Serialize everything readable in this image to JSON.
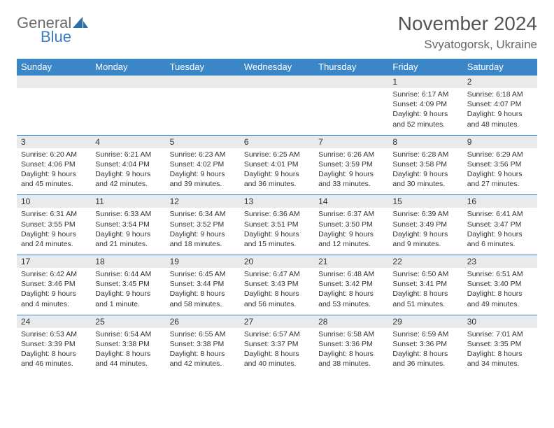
{
  "brand": {
    "general": "General",
    "blue": "Blue"
  },
  "heading": {
    "month": "November 2024",
    "location": "Svyatogorsk, Ukraine"
  },
  "colors": {
    "header_bg": "#3b86c6",
    "daynum_bg": "#e9eaec",
    "border": "#3b86c6",
    "text": "#333333",
    "heading": "#555555"
  },
  "days": [
    "Sunday",
    "Monday",
    "Tuesday",
    "Wednesday",
    "Thursday",
    "Friday",
    "Saturday"
  ],
  "weeks": [
    [
      null,
      null,
      null,
      null,
      null,
      {
        "n": "1",
        "sr": "6:17 AM",
        "ss": "4:09 PM",
        "dl": "9 hours and 52 minutes."
      },
      {
        "n": "2",
        "sr": "6:18 AM",
        "ss": "4:07 PM",
        "dl": "9 hours and 48 minutes."
      }
    ],
    [
      {
        "n": "3",
        "sr": "6:20 AM",
        "ss": "4:06 PM",
        "dl": "9 hours and 45 minutes."
      },
      {
        "n": "4",
        "sr": "6:21 AM",
        "ss": "4:04 PM",
        "dl": "9 hours and 42 minutes."
      },
      {
        "n": "5",
        "sr": "6:23 AM",
        "ss": "4:02 PM",
        "dl": "9 hours and 39 minutes."
      },
      {
        "n": "6",
        "sr": "6:25 AM",
        "ss": "4:01 PM",
        "dl": "9 hours and 36 minutes."
      },
      {
        "n": "7",
        "sr": "6:26 AM",
        "ss": "3:59 PM",
        "dl": "9 hours and 33 minutes."
      },
      {
        "n": "8",
        "sr": "6:28 AM",
        "ss": "3:58 PM",
        "dl": "9 hours and 30 minutes."
      },
      {
        "n": "9",
        "sr": "6:29 AM",
        "ss": "3:56 PM",
        "dl": "9 hours and 27 minutes."
      }
    ],
    [
      {
        "n": "10",
        "sr": "6:31 AM",
        "ss": "3:55 PM",
        "dl": "9 hours and 24 minutes."
      },
      {
        "n": "11",
        "sr": "6:33 AM",
        "ss": "3:54 PM",
        "dl": "9 hours and 21 minutes."
      },
      {
        "n": "12",
        "sr": "6:34 AM",
        "ss": "3:52 PM",
        "dl": "9 hours and 18 minutes."
      },
      {
        "n": "13",
        "sr": "6:36 AM",
        "ss": "3:51 PM",
        "dl": "9 hours and 15 minutes."
      },
      {
        "n": "14",
        "sr": "6:37 AM",
        "ss": "3:50 PM",
        "dl": "9 hours and 12 minutes."
      },
      {
        "n": "15",
        "sr": "6:39 AM",
        "ss": "3:49 PM",
        "dl": "9 hours and 9 minutes."
      },
      {
        "n": "16",
        "sr": "6:41 AM",
        "ss": "3:47 PM",
        "dl": "9 hours and 6 minutes."
      }
    ],
    [
      {
        "n": "17",
        "sr": "6:42 AM",
        "ss": "3:46 PM",
        "dl": "9 hours and 4 minutes."
      },
      {
        "n": "18",
        "sr": "6:44 AM",
        "ss": "3:45 PM",
        "dl": "9 hours and 1 minute."
      },
      {
        "n": "19",
        "sr": "6:45 AM",
        "ss": "3:44 PM",
        "dl": "8 hours and 58 minutes."
      },
      {
        "n": "20",
        "sr": "6:47 AM",
        "ss": "3:43 PM",
        "dl": "8 hours and 56 minutes."
      },
      {
        "n": "21",
        "sr": "6:48 AM",
        "ss": "3:42 PM",
        "dl": "8 hours and 53 minutes."
      },
      {
        "n": "22",
        "sr": "6:50 AM",
        "ss": "3:41 PM",
        "dl": "8 hours and 51 minutes."
      },
      {
        "n": "23",
        "sr": "6:51 AM",
        "ss": "3:40 PM",
        "dl": "8 hours and 49 minutes."
      }
    ],
    [
      {
        "n": "24",
        "sr": "6:53 AM",
        "ss": "3:39 PM",
        "dl": "8 hours and 46 minutes."
      },
      {
        "n": "25",
        "sr": "6:54 AM",
        "ss": "3:38 PM",
        "dl": "8 hours and 44 minutes."
      },
      {
        "n": "26",
        "sr": "6:55 AM",
        "ss": "3:38 PM",
        "dl": "8 hours and 42 minutes."
      },
      {
        "n": "27",
        "sr": "6:57 AM",
        "ss": "3:37 PM",
        "dl": "8 hours and 40 minutes."
      },
      {
        "n": "28",
        "sr": "6:58 AM",
        "ss": "3:36 PM",
        "dl": "8 hours and 38 minutes."
      },
      {
        "n": "29",
        "sr": "6:59 AM",
        "ss": "3:36 PM",
        "dl": "8 hours and 36 minutes."
      },
      {
        "n": "30",
        "sr": "7:01 AM",
        "ss": "3:35 PM",
        "dl": "8 hours and 34 minutes."
      }
    ]
  ],
  "labels": {
    "sunrise": "Sunrise:",
    "sunset": "Sunset:",
    "daylight": "Daylight:"
  }
}
